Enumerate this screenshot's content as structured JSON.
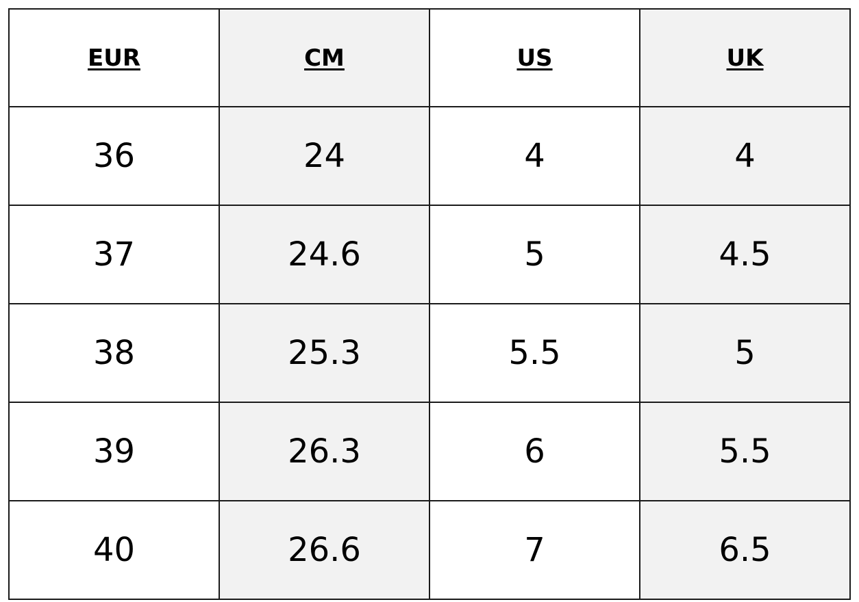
{
  "table": {
    "headers": [
      "EUR",
      "CM",
      "US",
      "UK"
    ],
    "rows": [
      [
        "36",
        "24",
        "4",
        "4"
      ],
      [
        "37",
        "24.6",
        "5",
        "4.5"
      ],
      [
        "38",
        "25.3",
        "5.5",
        "5"
      ],
      [
        "39",
        "26.3",
        "6",
        "5.5"
      ],
      [
        "40",
        "26.6",
        "7",
        "6.5"
      ]
    ]
  },
  "colors": {
    "border": "#1a1a1a",
    "shaded_column_bg": "#f2f2f2",
    "plain_column_bg": "#ffffff",
    "text": "#000000"
  }
}
